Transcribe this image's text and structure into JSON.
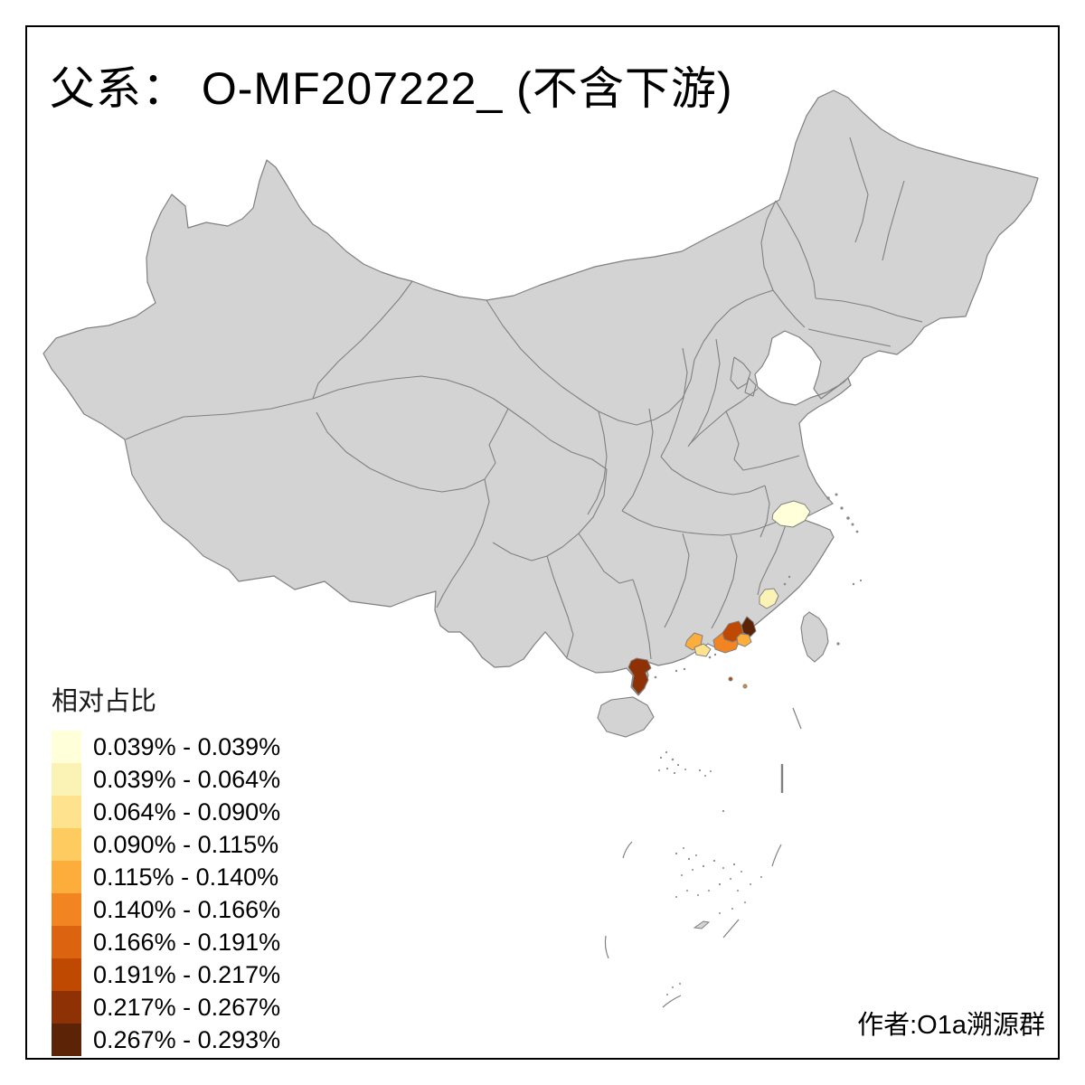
{
  "frame": {
    "title": "父系：  O-MF207222_ (不含下游)"
  },
  "attribution": "作者:O1a溯源群",
  "legend": {
    "title": "相对占比",
    "classes": [
      {
        "label": "0.039% - 0.039%",
        "color": "#FFFFD9"
      },
      {
        "label": "0.039% - 0.064%",
        "color": "#FBF2B6"
      },
      {
        "label": "0.064% - 0.090%",
        "color": "#FEE28D"
      },
      {
        "label": "0.090% - 0.115%",
        "color": "#FDCB60"
      },
      {
        "label": "0.115% - 0.140%",
        "color": "#FDAD3C"
      },
      {
        "label": "0.140% - 0.166%",
        "color": "#F28522"
      },
      {
        "label": "0.166% - 0.191%",
        "color": "#DC6310"
      },
      {
        "label": "0.191% - 0.217%",
        "color": "#C04902"
      },
      {
        "label": "0.217% - 0.267%",
        "color": "#8E3104"
      },
      {
        "label": "0.267% - 0.293%",
        "color": "#5C2306"
      }
    ]
  },
  "map": {
    "background_color": "#FFFFFF",
    "frame_color": "#000000",
    "land_color": "#D3D3D3",
    "boundary_color": "#808080",
    "island_dot_color": "#8A8A8A",
    "colored_regions": [
      {
        "name": "north-zhejiang-region",
        "color": "#FFFFD9"
      },
      {
        "name": "south-fujian-quanzhou-region",
        "color": "#FBF2B6"
      },
      {
        "name": "pearl-delta-west-upper-region",
        "color": "#FDAD3C"
      },
      {
        "name": "pearl-delta-west-lower-region",
        "color": "#FEE28D"
      },
      {
        "name": "east-guangdong-west-region",
        "color": "#F28522"
      },
      {
        "name": "jieyang-area-region",
        "color": "#C04902"
      },
      {
        "name": "chaozhou-area-region",
        "color": "#5C2306"
      },
      {
        "name": "shantou-area-region",
        "color": "#FDAD3C"
      },
      {
        "name": "leizhou-peninsula-region",
        "color": "#8E3104"
      },
      {
        "name": "coastal-islet-east",
        "color": "#C04902"
      },
      {
        "name": "coastal-islet-far-east",
        "color": "#F28522"
      }
    ]
  },
  "chart_data": {
    "type": "choropleth-map",
    "title": "父系：  O-MF207222_ (不含下游)",
    "legend_title": "相对占比",
    "unit": "%",
    "classes": [
      {
        "range": "0.039% - 0.039%",
        "color": "#FFFFD9"
      },
      {
        "range": "0.039% - 0.064%",
        "color": "#FBF2B6"
      },
      {
        "range": "0.064% - 0.090%",
        "color": "#FEE28D"
      },
      {
        "range": "0.090% - 0.115%",
        "color": "#FDCB60"
      },
      {
        "range": "0.115% - 0.140%",
        "color": "#FDAD3C"
      },
      {
        "range": "0.140% - 0.166%",
        "color": "#F28522"
      },
      {
        "range": "0.166% - 0.191%",
        "color": "#DC6310"
      },
      {
        "range": "0.191% - 0.217%",
        "color": "#C04902"
      },
      {
        "range": "0.217% - 0.267%",
        "color": "#8E3104"
      },
      {
        "range": "0.267% - 0.293%",
        "color": "#5C2306"
      }
    ],
    "highlighted_regions": [
      {
        "location": "north Zhejiang prefecture",
        "value_range": "0.039% - 0.039%"
      },
      {
        "location": "south Fujian (Quanzhou area)",
        "value_range": "0.039% - 0.064%"
      },
      {
        "location": "west Pearl River Delta upper prefecture",
        "value_range": "0.115% - 0.140%"
      },
      {
        "location": "west Pearl River Delta lower prefecture",
        "value_range": "0.064% - 0.090%"
      },
      {
        "location": "east Guangdong western prefecture",
        "value_range": "0.140% - 0.166%"
      },
      {
        "location": "Jieyang area",
        "value_range": "0.191% - 0.217%"
      },
      {
        "location": "Chaozhou area",
        "value_range": "0.267% - 0.293%"
      },
      {
        "location": "Shantou area",
        "value_range": "0.115% - 0.140%"
      },
      {
        "location": "Leizhou peninsula (Zhanjiang)",
        "value_range": "0.217% - 0.267%"
      },
      {
        "location": "all other prefectures",
        "value_range": "no data (gray)"
      }
    ]
  }
}
